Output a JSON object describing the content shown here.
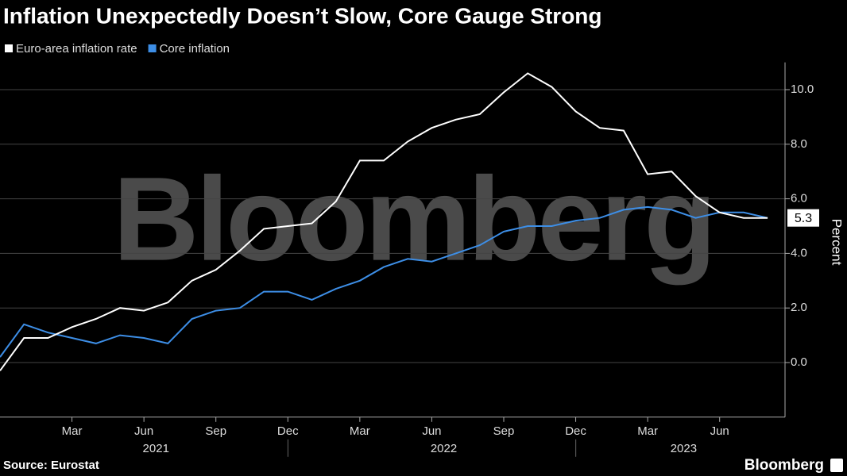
{
  "chart_data": {
    "type": "line",
    "title": "Inflation Unexpectedly Doesn’t Slow, Core Gauge Strong",
    "watermark": "Bloomberg",
    "brand": "Bloomberg",
    "source": "Source: Eurostat",
    "y_axis_label": "Percent",
    "categories": [
      "2020-12",
      "2021-01",
      "2021-02",
      "2021-03",
      "2021-04",
      "2021-05",
      "2021-06",
      "2021-07",
      "2021-08",
      "2021-09",
      "2021-10",
      "2021-11",
      "2021-12",
      "2022-01",
      "2022-02",
      "2022-03",
      "2022-04",
      "2022-05",
      "2022-06",
      "2022-07",
      "2022-08",
      "2022-09",
      "2022-10",
      "2022-11",
      "2022-12",
      "2023-01",
      "2023-02",
      "2023-03",
      "2023-04",
      "2023-05",
      "2023-06",
      "2023-07",
      "2023-08"
    ],
    "series": [
      {
        "name": "Euro-area inflation rate",
        "color": "#ffffff",
        "values": [
          -0.3,
          0.9,
          0.9,
          1.3,
          1.6,
          2.0,
          1.9,
          2.2,
          3.0,
          3.4,
          4.1,
          4.9,
          5.0,
          5.1,
          5.9,
          7.4,
          7.4,
          8.1,
          8.6,
          8.9,
          9.1,
          9.9,
          10.6,
          10.1,
          9.2,
          8.6,
          8.5,
          6.9,
          7.0,
          6.1,
          5.5,
          5.3,
          5.3
        ]
      },
      {
        "name": "Core inflation",
        "color": "#3d8ee6",
        "values": [
          0.2,
          1.4,
          1.1,
          0.9,
          0.7,
          1.0,
          0.9,
          0.7,
          1.6,
          1.9,
          2.0,
          2.6,
          2.6,
          2.3,
          2.7,
          3.0,
          3.5,
          3.8,
          3.7,
          4.0,
          4.3,
          4.8,
          5.0,
          5.0,
          5.2,
          5.3,
          5.6,
          5.7,
          5.6,
          5.3,
          5.5,
          5.5,
          5.3
        ]
      }
    ],
    "xticks": [
      {
        "value": "2021-03",
        "label": "Mar"
      },
      {
        "value": "2021-06",
        "label": "Jun"
      },
      {
        "value": "2021-09",
        "label": "Sep"
      },
      {
        "value": "2021-12",
        "label": "Dec"
      },
      {
        "value": "2022-03",
        "label": "Mar"
      },
      {
        "value": "2022-06",
        "label": "Jun"
      },
      {
        "value": "2022-09",
        "label": "Sep"
      },
      {
        "value": "2022-12",
        "label": "Dec"
      },
      {
        "value": "2023-03",
        "label": "Mar"
      },
      {
        "value": "2023-06",
        "label": "Jun"
      }
    ],
    "year_labels": [
      "2021",
      "2022",
      "2023"
    ],
    "ylim": [
      -2,
      11
    ],
    "yticks": [
      {
        "value": 0,
        "label": "0.0"
      },
      {
        "value": 2,
        "label": "2.0"
      },
      {
        "value": 4,
        "label": "4.0"
      },
      {
        "value": 6,
        "label": "6.0"
      },
      {
        "value": 8,
        "label": "8.0"
      },
      {
        "value": 10,
        "label": "10.0"
      }
    ],
    "grid": true
  }
}
